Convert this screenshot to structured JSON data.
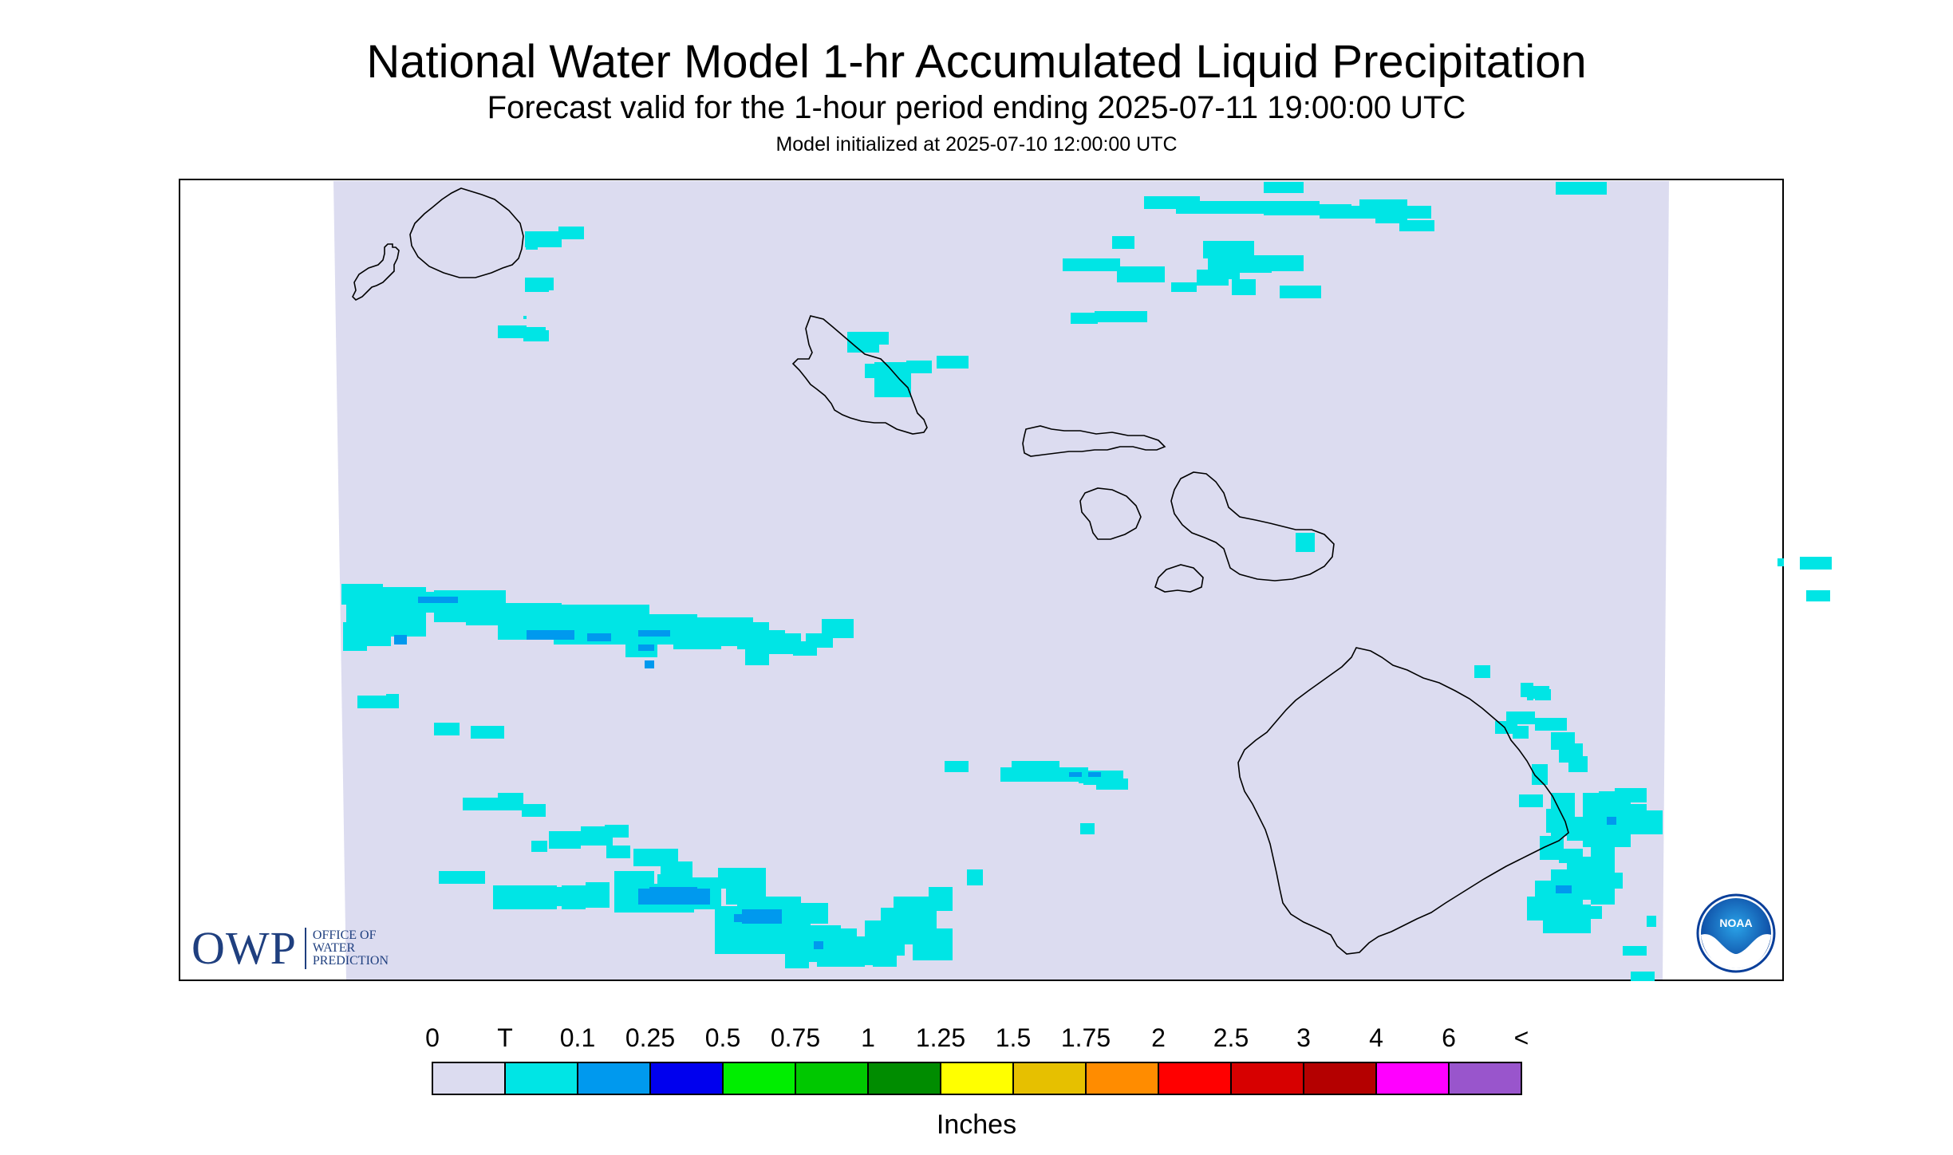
{
  "header": {
    "title": "National Water Model 1-hr Accumulated Liquid Precipitation",
    "subtitle": "Forecast valid for the 1-hour period ending 2025-07-11 19:00:00 UTC",
    "init": "Model initialized at 2025-07-10 12:00:00 UTC"
  },
  "logos": {
    "owp_big": "OWP",
    "owp_line1": "OFFICE OF",
    "owp_line2": "WATER",
    "owp_line3": "PREDICTION",
    "noaa": "NOAA"
  },
  "legend": {
    "labels": [
      "0",
      "T",
      "0.1",
      "0.25",
      "0.5",
      "0.75",
      "1",
      "1.25",
      "1.5",
      "1.75",
      "2",
      "2.5",
      "3",
      "4",
      "6",
      "<"
    ],
    "colors": [
      "#dcdcf0",
      "#00e5e5",
      "#0099ee",
      "#0000ee",
      "#00ee00",
      "#00c800",
      "#008c00",
      "#ffff00",
      "#e6c000",
      "#ff8c00",
      "#ff0000",
      "#d70000",
      "#b40000",
      "#ff00ff",
      "#9955cc"
    ],
    "unit": "Inches"
  },
  "colors": {
    "map_background": "#dcdcf0",
    "trace": "#00e5e5",
    "light": "#0099ee",
    "outline": "#000000",
    "owp_blue": "#1f3f7f"
  }
}
